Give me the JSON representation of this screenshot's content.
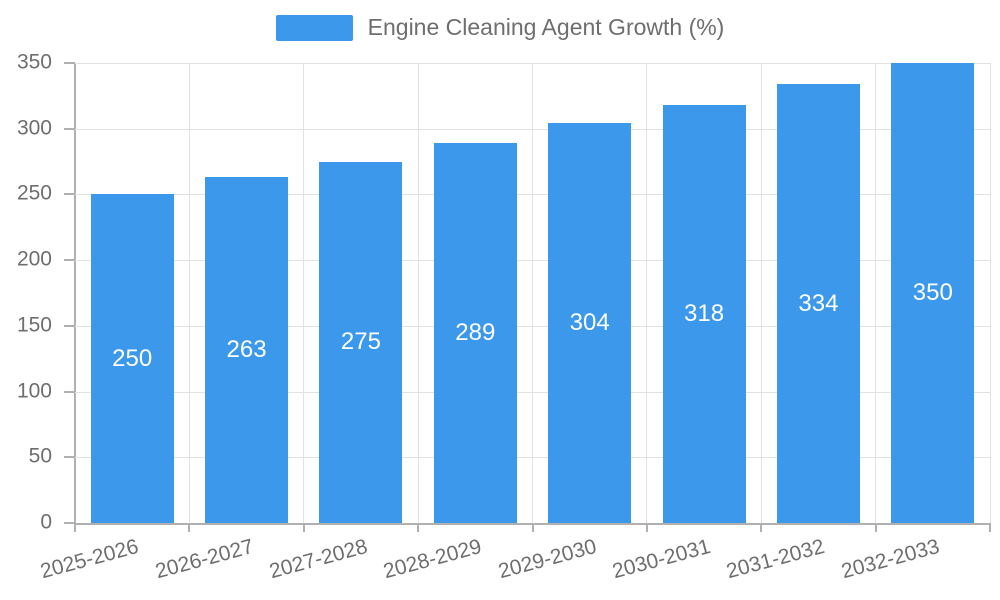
{
  "chart_data": {
    "type": "bar",
    "title": "Engine Cleaning Agent Growth (%)",
    "categories": [
      "2025-2026",
      "2026-2027",
      "2027-2028",
      "2028-2029",
      "2029-2030",
      "2030-2031",
      "2031-2032",
      "2032-2033"
    ],
    "values": [
      250,
      263,
      275,
      289,
      304,
      318,
      334,
      350
    ],
    "xlabel": "",
    "ylabel": "",
    "ylim": [
      0,
      350
    ],
    "ytick_step": 50,
    "yticks": [
      0,
      50,
      100,
      150,
      200,
      250,
      300,
      350
    ],
    "grid": true,
    "legend_position": "top-center",
    "value_labels": "inside-center",
    "colors": {
      "bar": "#3b98eb",
      "value_label": "#ffffff",
      "axis": "#b0b0b0",
      "grid": "#e2e2e2",
      "text": "#6e6e6e",
      "background": "#ffffff"
    }
  }
}
